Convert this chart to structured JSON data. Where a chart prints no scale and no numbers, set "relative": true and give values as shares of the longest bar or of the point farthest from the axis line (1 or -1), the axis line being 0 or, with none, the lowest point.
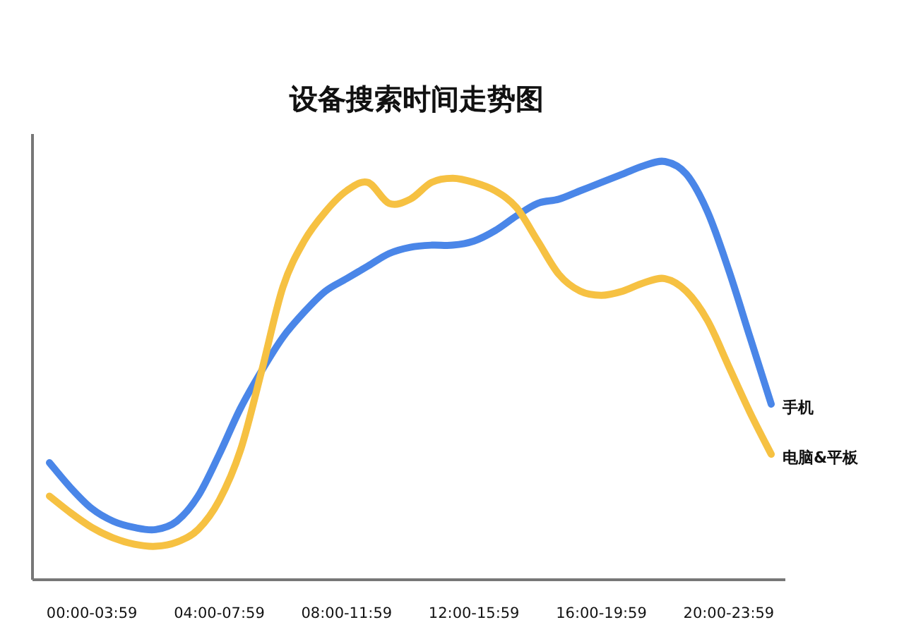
{
  "chart_data": {
    "type": "line",
    "title": "设备搜索时间走势图",
    "relative": true,
    "legend": false,
    "categories": [
      null,
      null,
      "00:00-03:59",
      null,
      null,
      null,
      null,
      null,
      "04:00-07:59",
      null,
      null,
      null,
      null,
      null,
      "08:00-11:59",
      null,
      null,
      null,
      null,
      null,
      "12:00-15:59",
      null,
      null,
      null,
      null,
      null,
      "16:00-19:59",
      null,
      null,
      null,
      null,
      null,
      "20:00-23:59",
      null,
      null
    ],
    "series": [
      {
        "name": "手机",
        "color": "#4a86e8",
        "values": [
          0.28,
          0.22,
          0.17,
          0.14,
          0.125,
          0.12,
          0.14,
          0.2,
          0.3,
          0.41,
          0.5,
          0.58,
          0.64,
          0.69,
          0.72,
          0.75,
          0.78,
          0.795,
          0.8,
          0.8,
          0.81,
          0.835,
          0.87,
          0.9,
          0.91,
          0.93,
          0.95,
          0.97,
          0.99,
          1.0,
          0.97,
          0.88,
          0.74,
          0.58,
          0.42
        ]
      },
      {
        "name": "电脑&平板",
        "color": "#f6c142",
        "values": [
          0.2,
          0.16,
          0.125,
          0.1,
          0.085,
          0.08,
          0.09,
          0.12,
          0.19,
          0.31,
          0.5,
          0.7,
          0.81,
          0.88,
          0.93,
          0.95,
          0.9,
          0.91,
          0.95,
          0.96,
          0.95,
          0.93,
          0.89,
          0.81,
          0.73,
          0.69,
          0.68,
          0.69,
          0.71,
          0.72,
          0.69,
          0.62,
          0.51,
          0.4,
          0.3
        ]
      }
    ]
  }
}
